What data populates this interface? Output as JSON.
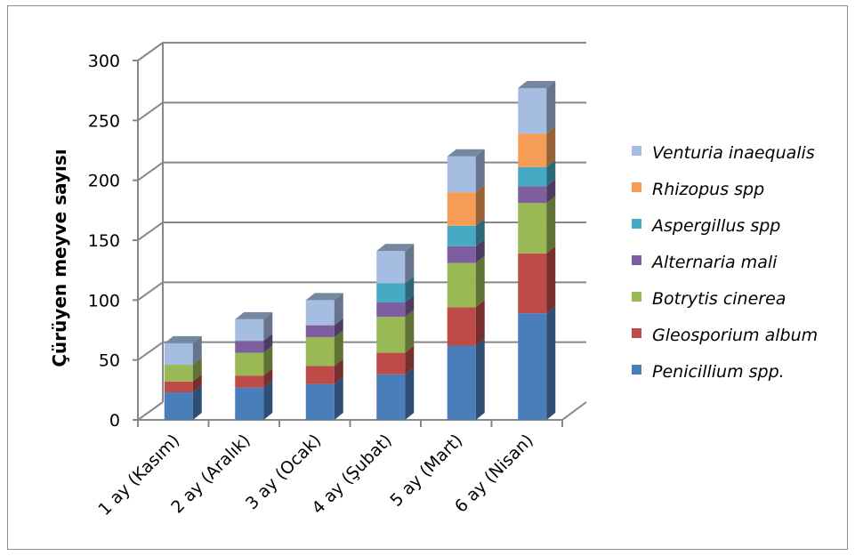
{
  "colors": {
    "grid": "#878787",
    "axis": "#878787"
  },
  "chart_data": {
    "type": "bar",
    "stacked": true,
    "three_d": true,
    "grid": true,
    "legend_position": "right",
    "title": "",
    "xlabel": "",
    "ylabel": "Çürüyen meyve sayısı",
    "ylim": [
      0,
      300
    ],
    "yticks": [
      0,
      50,
      100,
      150,
      200,
      250,
      300
    ],
    "categories": [
      "1 ay (Kasım)",
      "2 ay (Aralık)",
      "3 ay (Ocak)",
      "4 ay (Şubat)",
      "5 ay (Mart)",
      "6 ay (Nisan)"
    ],
    "series": [
      {
        "name": "Penicillium spp.",
        "color": "#4a7ebb",
        "values": [
          23,
          27,
          30,
          38,
          62,
          89
        ]
      },
      {
        "name": "Gleosporium album",
        "color": "#be4b48",
        "values": [
          9,
          10,
          15,
          18,
          32,
          50
        ]
      },
      {
        "name": "Botrytis cinerea",
        "color": "#98b954",
        "values": [
          14,
          19,
          24,
          30,
          37,
          42
        ]
      },
      {
        "name": "Alternaria mali",
        "color": "#7d5fa0",
        "values": [
          0,
          10,
          10,
          12,
          14,
          14
        ]
      },
      {
        "name": "Aspergillus spp",
        "color": "#46aac5",
        "values": [
          0,
          0,
          0,
          16,
          17,
          16
        ]
      },
      {
        "name": "Rhizopus spp",
        "color": "#f59d56",
        "values": [
          0,
          0,
          0,
          0,
          28,
          28
        ]
      },
      {
        "name": "Venturia inaequalis",
        "color": "#a4bde0",
        "values": [
          18,
          18,
          21,
          27,
          30,
          38
        ]
      }
    ]
  }
}
